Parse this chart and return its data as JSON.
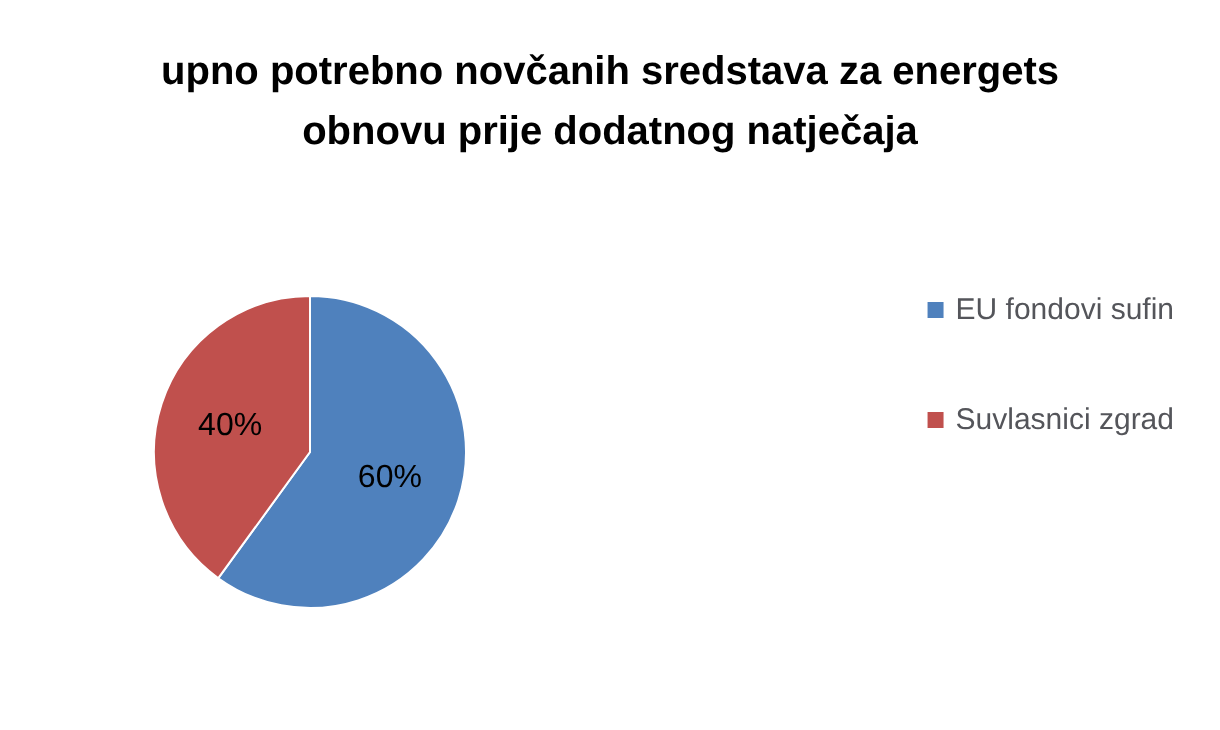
{
  "chart_data": {
    "type": "pie",
    "title": "upno potrebno novčanih sredstava za energets\nobnovu prije dodatnog natječaja",
    "categories": [
      "EU fondovi sufin",
      "Suvlasnici zgrad"
    ],
    "values": [
      60,
      40
    ],
    "colors": [
      "#4f81bd",
      "#c0504d"
    ],
    "value_labels": [
      "60%",
      "40%"
    ],
    "legend": "right"
  }
}
